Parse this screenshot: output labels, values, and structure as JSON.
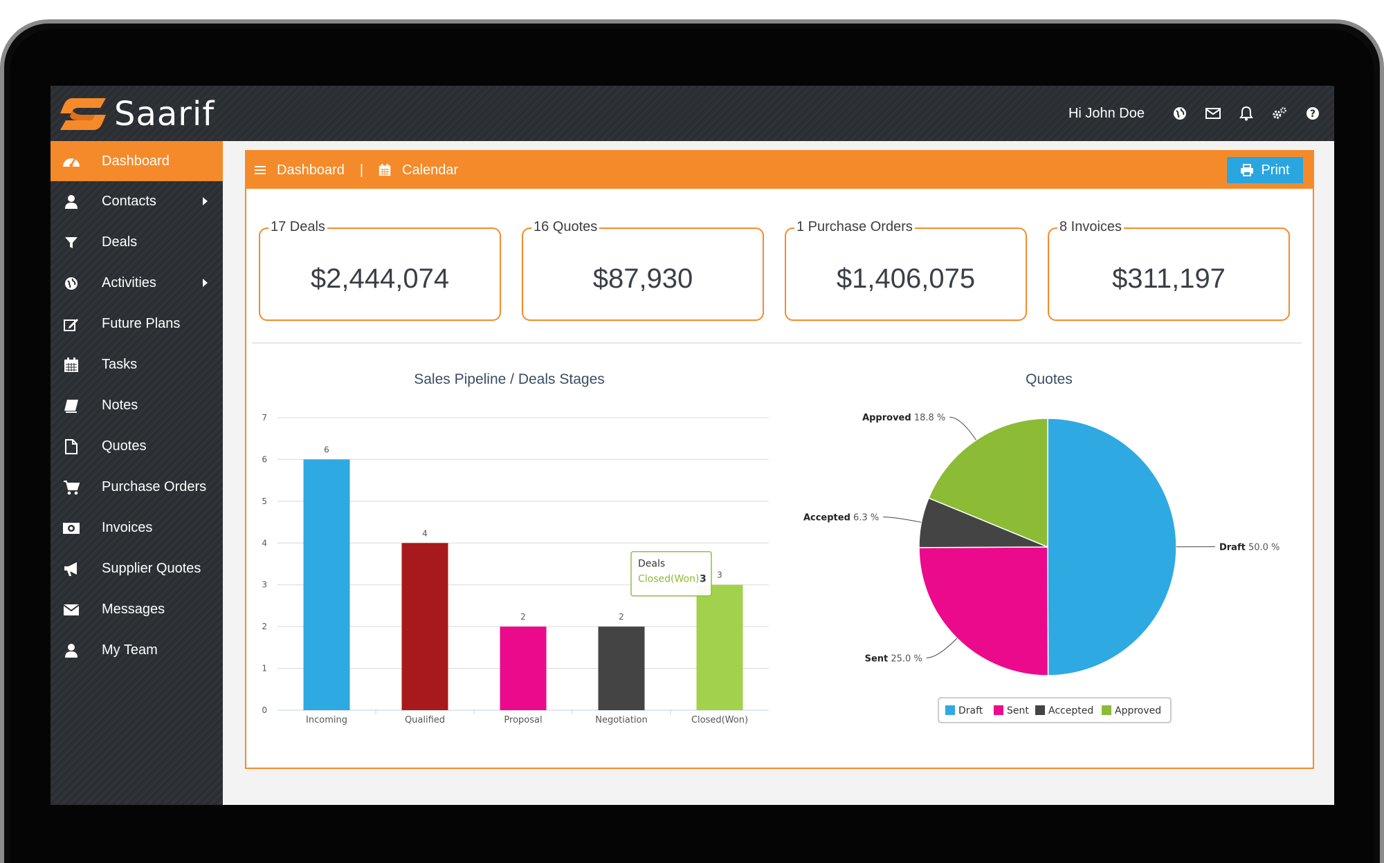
{
  "app": {
    "name": "Saarif",
    "greeting": "Hi John Doe",
    "brand_color": "#f58a2a",
    "top_icons": [
      "globe-icon",
      "envelope-icon",
      "bell-icon",
      "gears-icon",
      "question-icon"
    ]
  },
  "sidebar": {
    "items": [
      {
        "label": "Dashboard",
        "icon": "dashboard-icon",
        "active": true
      },
      {
        "label": "Contacts",
        "icon": "user-icon",
        "has_submenu": true
      },
      {
        "label": "Deals",
        "icon": "filter-icon"
      },
      {
        "label": "Activities",
        "icon": "globe-icon",
        "has_submenu": true
      },
      {
        "label": "Future Plans",
        "icon": "edit-icon"
      },
      {
        "label": "Tasks",
        "icon": "calendar-icon"
      },
      {
        "label": "Notes",
        "icon": "book-icon"
      },
      {
        "label": "Quotes",
        "icon": "file-icon"
      },
      {
        "label": "Purchase Orders",
        "icon": "cart-icon"
      },
      {
        "label": "Invoices",
        "icon": "money-icon"
      },
      {
        "label": "Supplier Quotes",
        "icon": "bullhorn-icon"
      },
      {
        "label": "Messages",
        "icon": "envelope-icon"
      },
      {
        "label": "My Team",
        "icon": "user-icon"
      }
    ]
  },
  "header": {
    "dashboard_label": "Dashboard",
    "separator": "|",
    "calendar_label": "Calendar",
    "print_label": "Print"
  },
  "cards": [
    {
      "label": "17 Deals",
      "value": "$2,444,074"
    },
    {
      "label": "16 Quotes",
      "value": "$87,930"
    },
    {
      "label": "1 Purchase Orders",
      "value": "$1,406,075"
    },
    {
      "label": "8 Invoices",
      "value": "$311,197"
    }
  ],
  "chart_data": [
    {
      "type": "bar",
      "title": "Sales Pipeline / Deals Stages",
      "categories": [
        "Incoming",
        "Qualified",
        "Proposal",
        "Negotiation",
        "Closed(Won)"
      ],
      "values": [
        6,
        4,
        2,
        2,
        3
      ],
      "colors": [
        "#2fa9e2",
        "#a8191b",
        "#ec0a8c",
        "#444444",
        "#a2d14b"
      ],
      "ylim": [
        0,
        7
      ],
      "yticks": [
        "0",
        "1",
        "2",
        "3",
        "4",
        "5",
        "6",
        "7"
      ],
      "grid": true,
      "tooltip": {
        "title": "Deals",
        "series": "Closed(Won)",
        "value": "3"
      }
    },
    {
      "type": "pie",
      "title": "Quotes",
      "slices": [
        {
          "name": "Draft",
          "value": 50.0,
          "label": "50.0 %",
          "color": "#2fa9e2"
        },
        {
          "name": "Sent",
          "value": 25.0,
          "label": "25.0 %",
          "color": "#ec0a8c"
        },
        {
          "name": "Accepted",
          "value": 6.3,
          "label": "6.3 %",
          "color": "#444444"
        },
        {
          "name": "Approved",
          "value": 18.8,
          "label": "18.8 %",
          "color": "#8cbb36"
        }
      ],
      "legend": "bottom"
    }
  ]
}
